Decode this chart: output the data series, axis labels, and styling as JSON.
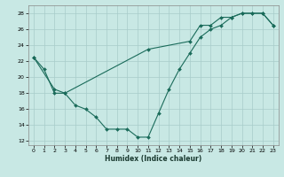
{
  "xlabel": "Humidex (Indice chaleur)",
  "background_color": "#c8e8e4",
  "grid_color": "#a8ccca",
  "line_color": "#1a6b5a",
  "xlim": [
    -0.5,
    23.5
  ],
  "ylim": [
    11.5,
    29
  ],
  "xticks": [
    0,
    1,
    2,
    3,
    4,
    5,
    6,
    7,
    8,
    9,
    10,
    11,
    12,
    13,
    14,
    15,
    16,
    17,
    18,
    19,
    20,
    21,
    22,
    23
  ],
  "yticks": [
    12,
    14,
    16,
    18,
    20,
    22,
    24,
    26,
    28
  ],
  "line1_x": [
    0,
    1,
    2,
    3,
    4,
    5,
    6,
    7,
    8,
    9,
    10,
    11,
    12,
    13,
    14,
    15,
    16,
    17,
    18,
    19,
    20,
    21,
    22,
    23
  ],
  "line1_y": [
    22.5,
    21.0,
    18.0,
    18.0,
    16.5,
    16.0,
    15.0,
    13.5,
    13.5,
    13.5,
    12.5,
    12.5,
    15.5,
    18.5,
    21.0,
    23.0,
    25.0,
    26.0,
    26.5,
    27.5,
    28.0,
    28.0,
    28.0,
    26.5
  ],
  "line2_x": [
    0,
    2,
    3,
    11,
    15,
    16,
    17,
    18,
    19,
    20,
    21,
    22,
    23
  ],
  "line2_y": [
    22.5,
    18.5,
    18.0,
    23.5,
    24.5,
    26.5,
    26.5,
    27.5,
    27.5,
    28.0,
    28.0,
    28.0,
    26.5
  ],
  "xlabel_fontsize": 5.5,
  "tick_fontsize": 4.5
}
